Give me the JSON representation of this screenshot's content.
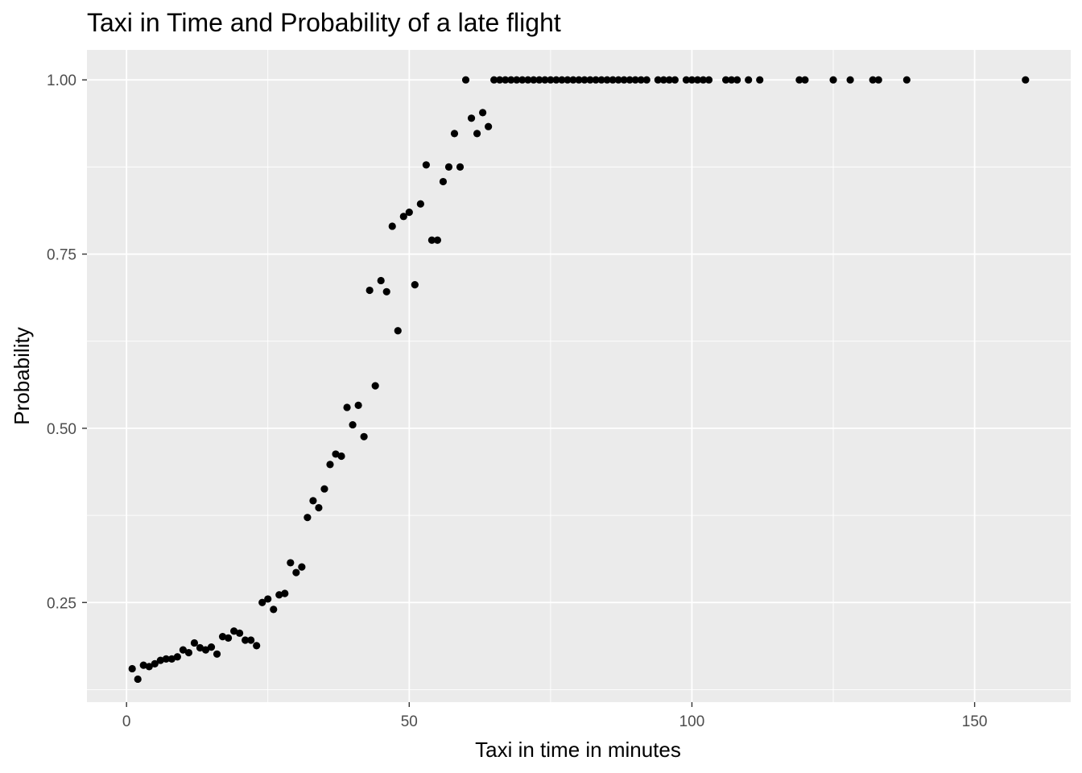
{
  "chart_data": {
    "type": "scatter",
    "title": "Taxi in Time and Probability of a late flight",
    "xlabel": "Taxi in time in minutes",
    "ylabel": "Probability",
    "xlim": [
      -7,
      167
    ],
    "ylim": [
      0.107,
      1.043
    ],
    "x_ticks": [
      0,
      50,
      100,
      150
    ],
    "x_tick_labels": [
      "0",
      "50",
      "100",
      "150"
    ],
    "y_ticks": [
      0.25,
      0.5,
      0.75,
      1.0
    ],
    "y_tick_labels": [
      "0.25",
      "0.50",
      "0.75",
      "1.00"
    ],
    "grid": true,
    "legend": "none",
    "colors": {
      "panel": "#ebebeb",
      "grid": "#ffffff",
      "point": "#000000"
    },
    "points": [
      [
        1,
        0.155
      ],
      [
        2,
        0.14
      ],
      [
        3,
        0.16
      ],
      [
        4,
        0.158
      ],
      [
        5,
        0.162
      ],
      [
        6,
        0.167
      ],
      [
        7,
        0.169
      ],
      [
        8,
        0.169
      ],
      [
        9,
        0.172
      ],
      [
        10,
        0.182
      ],
      [
        11,
        0.178
      ],
      [
        12,
        0.192
      ],
      [
        13,
        0.185
      ],
      [
        14,
        0.182
      ],
      [
        15,
        0.186
      ],
      [
        16,
        0.176
      ],
      [
        17,
        0.201
      ],
      [
        18,
        0.199
      ],
      [
        19,
        0.209
      ],
      [
        20,
        0.206
      ],
      [
        21,
        0.196
      ],
      [
        22,
        0.196
      ],
      [
        23,
        0.188
      ],
      [
        24,
        0.25
      ],
      [
        25,
        0.255
      ],
      [
        26,
        0.24
      ],
      [
        27,
        0.261
      ],
      [
        28,
        0.263
      ],
      [
        29,
        0.307
      ],
      [
        30,
        0.293
      ],
      [
        31,
        0.301
      ],
      [
        32,
        0.372
      ],
      [
        33,
        0.396
      ],
      [
        34,
        0.386
      ],
      [
        35,
        0.413
      ],
      [
        36,
        0.448
      ],
      [
        37,
        0.463
      ],
      [
        38,
        0.46
      ],
      [
        39,
        0.53
      ],
      [
        40,
        0.505
      ],
      [
        41,
        0.533
      ],
      [
        42,
        0.488
      ],
      [
        43,
        0.698
      ],
      [
        44,
        0.561
      ],
      [
        45,
        0.712
      ],
      [
        46,
        0.696
      ],
      [
        47,
        0.79
      ],
      [
        48,
        0.64
      ],
      [
        49,
        0.804
      ],
      [
        50,
        0.81
      ],
      [
        51,
        0.706
      ],
      [
        52,
        0.822
      ],
      [
        53,
        0.878
      ],
      [
        54,
        0.77
      ],
      [
        55,
        0.77
      ],
      [
        56,
        0.854
      ],
      [
        57,
        0.875
      ],
      [
        58,
        0.923
      ],
      [
        59,
        0.875
      ],
      [
        60,
        1.0
      ],
      [
        61,
        0.945
      ],
      [
        62,
        0.923
      ],
      [
        63,
        0.953
      ],
      [
        64,
        0.933
      ],
      [
        65,
        1.0
      ],
      [
        66,
        1.0
      ],
      [
        67,
        1.0
      ],
      [
        68,
        1.0
      ],
      [
        69,
        1.0
      ],
      [
        70,
        1.0
      ],
      [
        71,
        1.0
      ],
      [
        72,
        1.0
      ],
      [
        73,
        1.0
      ],
      [
        74,
        1.0
      ],
      [
        75,
        1.0
      ],
      [
        76,
        1.0
      ],
      [
        77,
        1.0
      ],
      [
        78,
        1.0
      ],
      [
        79,
        1.0
      ],
      [
        80,
        1.0
      ],
      [
        81,
        1.0
      ],
      [
        82,
        1.0
      ],
      [
        83,
        1.0
      ],
      [
        84,
        1.0
      ],
      [
        85,
        1.0
      ],
      [
        86,
        1.0
      ],
      [
        87,
        1.0
      ],
      [
        88,
        1.0
      ],
      [
        89,
        1.0
      ],
      [
        90,
        1.0
      ],
      [
        91,
        1.0
      ],
      [
        92,
        1.0
      ],
      [
        94,
        1.0
      ],
      [
        95,
        1.0
      ],
      [
        96,
        1.0
      ],
      [
        97,
        1.0
      ],
      [
        99,
        1.0
      ],
      [
        100,
        1.0
      ],
      [
        101,
        1.0
      ],
      [
        102,
        1.0
      ],
      [
        103,
        1.0
      ],
      [
        106,
        1.0
      ],
      [
        107,
        1.0
      ],
      [
        108,
        1.0
      ],
      [
        110,
        1.0
      ],
      [
        112,
        1.0
      ],
      [
        119,
        1.0
      ],
      [
        120,
        1.0
      ],
      [
        125,
        1.0
      ],
      [
        128,
        1.0
      ],
      [
        132,
        1.0
      ],
      [
        133,
        1.0
      ],
      [
        138,
        1.0
      ],
      [
        159,
        1.0
      ]
    ]
  }
}
